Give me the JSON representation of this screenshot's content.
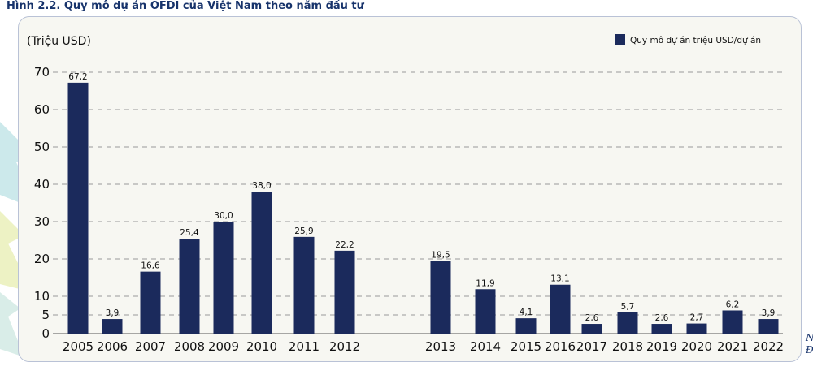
{
  "page": {
    "title": "Hình 2.2. Quy mô dự án OFDI của Việt Nam theo năm đầu tư",
    "side_note": "N\nĐ"
  },
  "colors": {
    "bar": "#1b2a5c",
    "title": "#17336b",
    "grid": "#9a9a9a",
    "panel": "#f7f7f2"
  },
  "chart_data": {
    "type": "bar",
    "title": "",
    "ylabel": "(Triệu USD)",
    "xlabel": "",
    "ylim": [
      0,
      70
    ],
    "yticks": [
      0,
      5,
      10,
      20,
      30,
      40,
      50,
      60,
      70
    ],
    "grid": true,
    "legend_position": "top-right",
    "categories": [
      "2005",
      "2006",
      "2007",
      "2008",
      "2009",
      "2010",
      "2011",
      "2012",
      "2013",
      "2014",
      "2015",
      "2016",
      "2017",
      "2018",
      "2019",
      "2020",
      "2021",
      "2022"
    ],
    "series": [
      {
        "name": "Quy mô dự án triệu USD/dự án",
        "values": [
          67.2,
          3.9,
          16.6,
          25.4,
          30.0,
          38.0,
          25.9,
          22.2,
          19.5,
          11.9,
          4.1,
          13.1,
          2.6,
          5.7,
          2.6,
          2.7,
          6.2,
          3.9
        ],
        "labels": [
          "67,2",
          "3,9",
          "16,6",
          "25,4",
          "30,0",
          "38,0",
          "25,9",
          "22,2",
          "19,5",
          "11,9",
          "4,1",
          "13,1",
          "2,6",
          "5,7",
          "2,6",
          "2,7",
          "6,2",
          "3,9"
        ]
      }
    ]
  }
}
